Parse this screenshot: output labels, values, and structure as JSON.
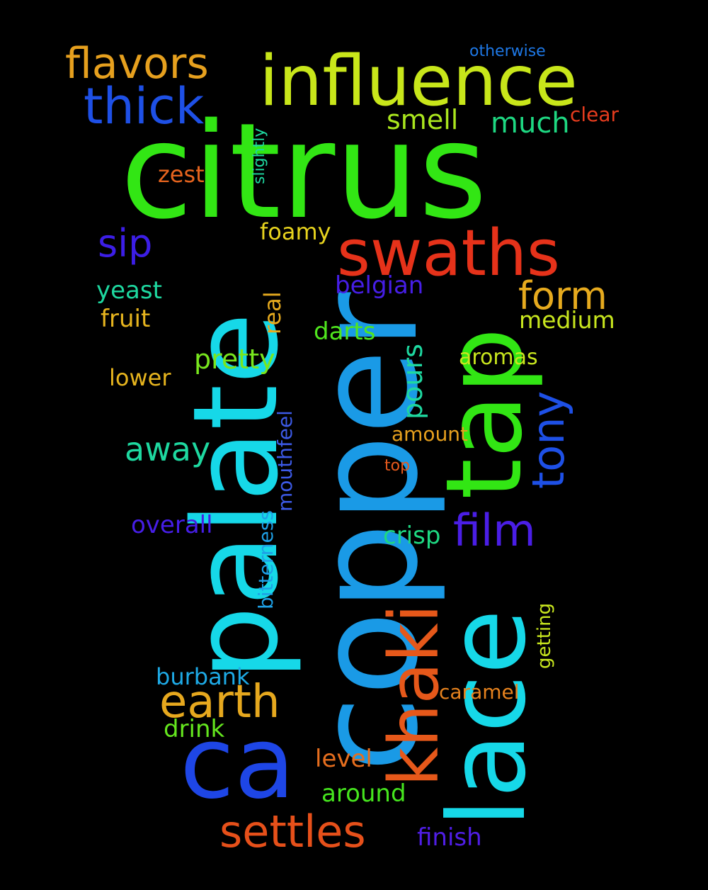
{
  "words": [
    {
      "text": "citrus",
      "color": "#32e614"
    },
    {
      "text": "copper",
      "color": "#1a9ae6"
    },
    {
      "text": "palate",
      "color": "#16d8e8"
    },
    {
      "text": "lace",
      "color": "#16d8e8"
    },
    {
      "text": "tap",
      "color": "#32e614"
    },
    {
      "text": "influence",
      "color": "#c8e61a"
    },
    {
      "text": "swaths",
      "color": "#e6321a"
    },
    {
      "text": "ca",
      "color": "#1e46e6"
    },
    {
      "text": "khaki",
      "color": "#e6581a"
    },
    {
      "text": "thick",
      "color": "#1e50e6"
    },
    {
      "text": "flavors",
      "color": "#e6a01e"
    },
    {
      "text": "settles",
      "color": "#e6501a"
    },
    {
      "text": "earth",
      "color": "#e6a81e"
    },
    {
      "text": "film",
      "color": "#4a1ee6"
    },
    {
      "text": "tony",
      "color": "#1e50e6"
    },
    {
      "text": "form",
      "color": "#e6aa1e"
    },
    {
      "text": "sip",
      "color": "#3c1ee6"
    },
    {
      "text": "away",
      "color": "#1ed8a0"
    },
    {
      "text": "pretty",
      "color": "#78e61e"
    },
    {
      "text": "much",
      "color": "#1ed882"
    },
    {
      "text": "smell",
      "color": "#aae61e"
    },
    {
      "text": "pours",
      "color": "#1ed8a0"
    },
    {
      "text": "foamy",
      "color": "#e6d21e"
    },
    {
      "text": "belgian",
      "color": "#461ee6"
    },
    {
      "text": "real",
      "color": "#e6aa1e"
    },
    {
      "text": "yeast",
      "color": "#1ed8a0"
    },
    {
      "text": "fruit",
      "color": "#e6b41e"
    },
    {
      "text": "medium",
      "color": "#c8e61e"
    },
    {
      "text": "darts",
      "color": "#50e61e"
    },
    {
      "text": "aromas",
      "color": "#c8e61e"
    },
    {
      "text": "lower",
      "color": "#e6b41e"
    },
    {
      "text": "crisp",
      "color": "#1ed882"
    },
    {
      "text": "overall",
      "color": "#461ee6"
    },
    {
      "text": "mouthfeel",
      "color": "#3c5ae6"
    },
    {
      "text": "bitterness",
      "color": "#1ea0e6"
    },
    {
      "text": "burbank",
      "color": "#1eaae6"
    },
    {
      "text": "drink",
      "color": "#64e61e"
    },
    {
      "text": "level",
      "color": "#e66e1e"
    },
    {
      "text": "around",
      "color": "#46e61e"
    },
    {
      "text": "finish",
      "color": "#501ee6"
    },
    {
      "text": "caramel",
      "color": "#e6821e"
    },
    {
      "text": "amount",
      "color": "#e6a01e"
    },
    {
      "text": "top",
      "color": "#e65a1e"
    },
    {
      "text": "getting",
      "color": "#c8e61e"
    },
    {
      "text": "clear",
      "color": "#e63c1e"
    },
    {
      "text": "zest",
      "color": "#e6641e"
    },
    {
      "text": "slightly",
      "color": "#1ed8a0"
    },
    {
      "text": "otherwise",
      "color": "#1e78e6"
    }
  ]
}
